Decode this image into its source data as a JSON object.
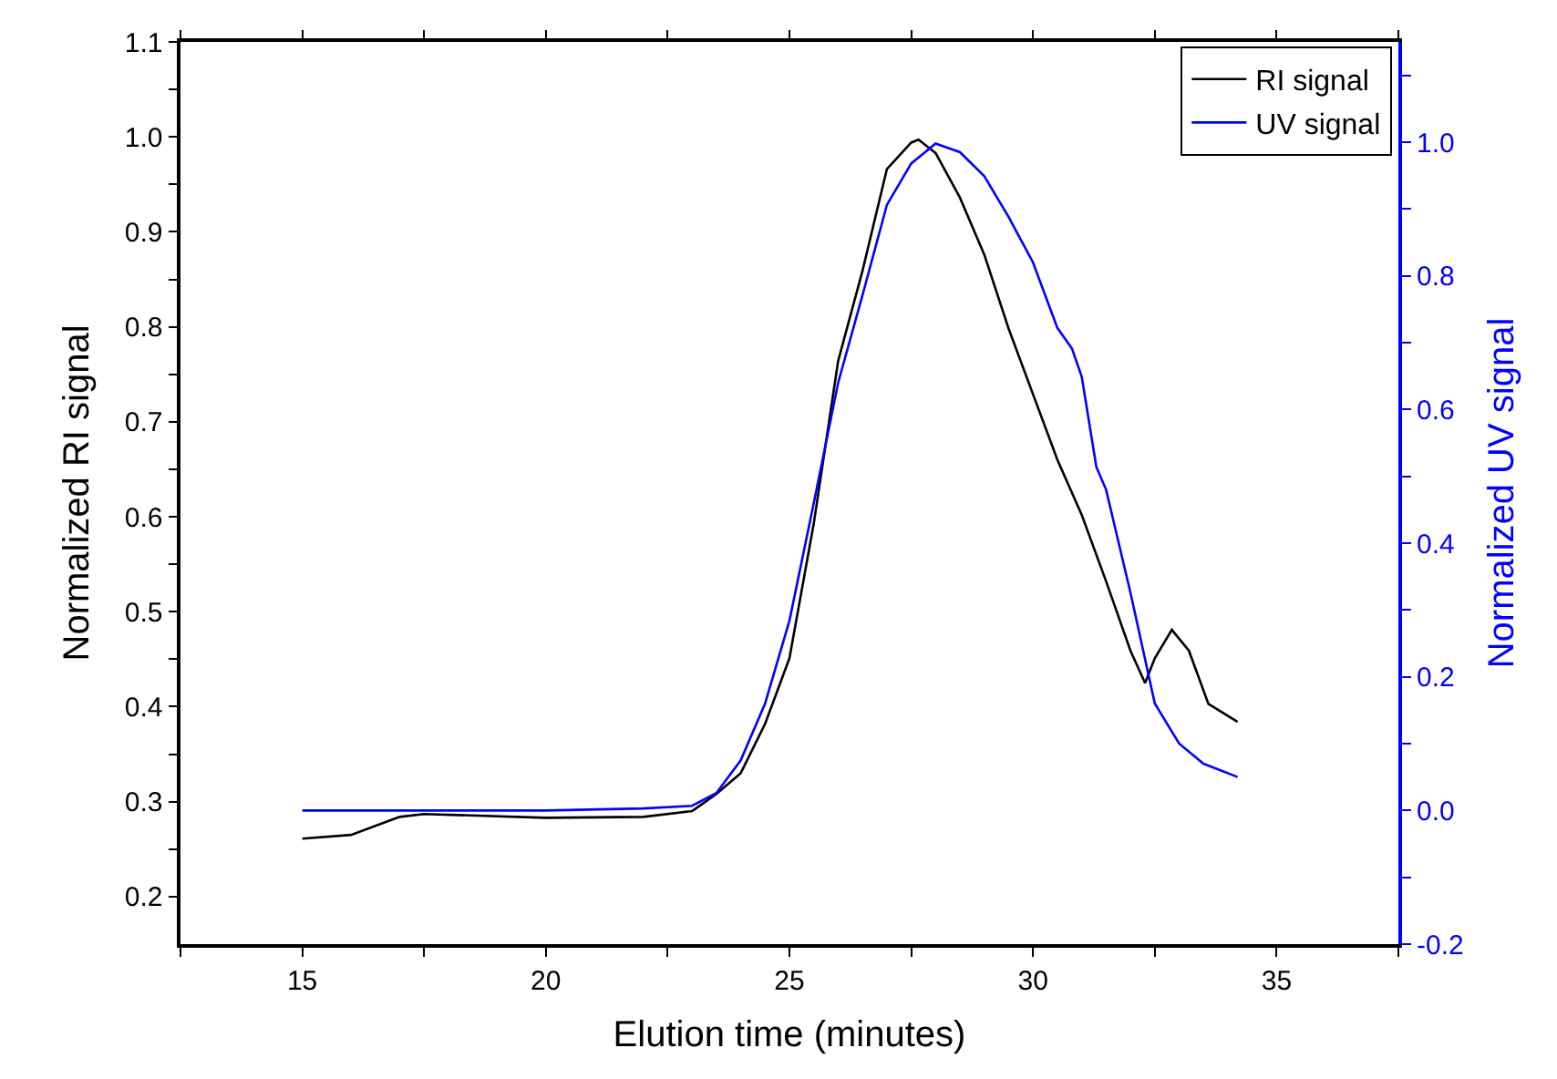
{
  "chart_data": {
    "type": "line",
    "xlabel": "Elution time (minutes)",
    "ylabel": "Normalized RI signal",
    "y2label": "Normalized UV signal",
    "xlim": [
      12.5,
      37.5
    ],
    "xticks": [
      {
        "value": 12.5,
        "label": null
      },
      15,
      {
        "value": 17.5,
        "label": null
      },
      20,
      {
        "value": 22.5,
        "label": null
      },
      25,
      {
        "value": 27.5,
        "label": null
      },
      30,
      {
        "value": 32.5,
        "label": null
      },
      35,
      {
        "value": 37.5,
        "label": null
      }
    ],
    "ylim": [
      0.15,
      1.1
    ],
    "yticks": [
      {
        "value": 0.2,
        "label": "0.2"
      },
      {
        "value": 0.25,
        "label": null
      },
      {
        "value": 0.3,
        "label": "0.3"
      },
      {
        "value": 0.35,
        "label": null
      },
      {
        "value": 0.4,
        "label": "0.4"
      },
      {
        "value": 0.45,
        "label": null
      },
      {
        "value": 0.5,
        "label": "0.5"
      },
      {
        "value": 0.55,
        "label": null
      },
      {
        "value": 0.6,
        "label": "0.6"
      },
      {
        "value": 0.65,
        "label": null
      },
      {
        "value": 0.7,
        "label": "0.7"
      },
      {
        "value": 0.75,
        "label": null
      },
      {
        "value": 0.8,
        "label": "0.8"
      },
      {
        "value": 0.85,
        "label": null
      },
      {
        "value": 0.9,
        "label": "0.9"
      },
      {
        "value": 0.95,
        "label": null
      },
      {
        "value": 1.0,
        "label": "1.0"
      },
      {
        "value": 1.05,
        "label": null
      },
      {
        "value": 1.1,
        "label": "1.1"
      }
    ],
    "y2lim": [
      -0.2,
      1.15
    ],
    "y2ticks": [
      {
        "value": -0.2,
        "label": "-0.2"
      },
      {
        "value": -0.1,
        "label": null
      },
      {
        "value": 0.0,
        "label": "0.0"
      },
      {
        "value": 0.1,
        "label": null
      },
      {
        "value": 0.2,
        "label": "0.2"
      },
      {
        "value": 0.3,
        "label": null
      },
      {
        "value": 0.4,
        "label": "0.4"
      },
      {
        "value": 0.5,
        "label": null
      },
      {
        "value": 0.6,
        "label": "0.6"
      },
      {
        "value": 0.7,
        "label": null
      },
      {
        "value": 0.8,
        "label": "0.8"
      },
      {
        "value": 0.9,
        "label": null
      },
      {
        "value": 1.0,
        "label": "1.0"
      },
      {
        "value": 1.1,
        "label": null
      }
    ],
    "legend": "top right",
    "marker": "none",
    "line_style": "solid",
    "series": [
      {
        "name": "RI signal",
        "color": "#000000",
        "x": [
          15,
          16,
          17,
          17.5,
          20,
          22,
          23,
          23.5,
          24,
          24.5,
          25,
          25.5,
          26,
          26.5,
          27,
          27.5,
          27.65,
          28,
          28.5,
          29,
          29.5,
          30,
          30.5,
          31,
          31.5,
          32,
          32.3,
          32.5,
          32.85,
          33.2,
          33.6,
          34.2
        ],
        "values": [
          0.261,
          0.265,
          0.284,
          0.287,
          0.283,
          0.284,
          0.29,
          0.308,
          0.33,
          0.382,
          0.451,
          0.593,
          0.764,
          0.859,
          0.966,
          0.994,
          0.997,
          0.983,
          0.936,
          0.876,
          0.798,
          0.729,
          0.66,
          0.602,
          0.532,
          0.459,
          0.425,
          0.451,
          0.481,
          0.459,
          0.403,
          0.384
        ]
      },
      {
        "name": "UV signal",
        "color": "#0000ff",
        "axis": "y2",
        "x": [
          15,
          17,
          20,
          22,
          23,
          23.5,
          24,
          24.5,
          25,
          25.5,
          26,
          26.5,
          27,
          27.5,
          28,
          28.5,
          29,
          29.5,
          30,
          30.5,
          30.8,
          31,
          31.3,
          31.5,
          32,
          32.5,
          33,
          33.5,
          34.2
        ],
        "values": [
          0.0,
          0.0,
          0.0,
          0.003,
          0.007,
          0.026,
          0.075,
          0.16,
          0.284,
          0.46,
          0.64,
          0.771,
          0.906,
          0.968,
          0.998,
          0.985,
          0.949,
          0.888,
          0.82,
          0.722,
          0.691,
          0.649,
          0.514,
          0.48,
          0.326,
          0.16,
          0.1,
          0.07,
          0.05
        ]
      }
    ]
  }
}
